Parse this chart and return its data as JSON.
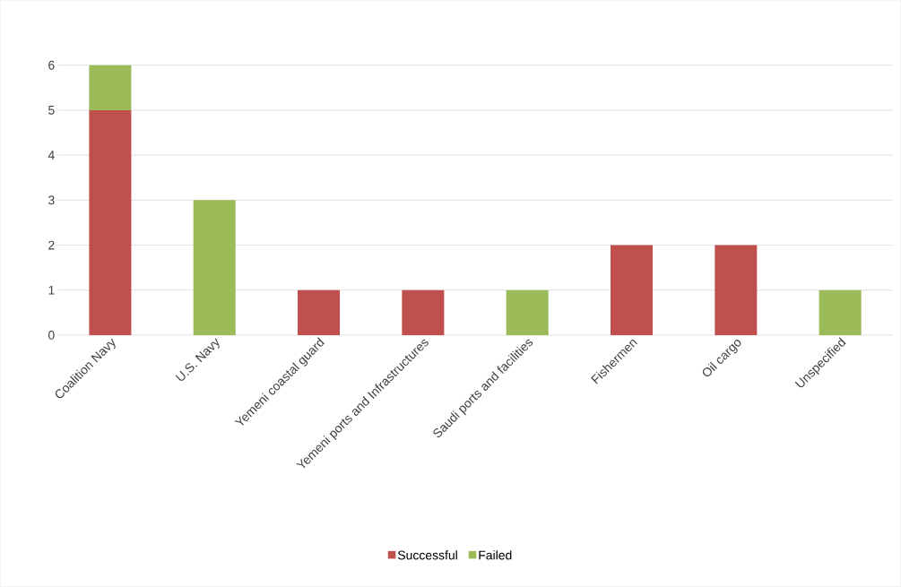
{
  "chart_data": {
    "type": "bar",
    "stacked": true,
    "categories": [
      "Coalition Navy",
      "U.S. Navy",
      "Yemeni coastal guard",
      "Yemeni ports and Infrastructures",
      "Saudi ports and facilities",
      "Fishermen",
      "Oil cargo",
      "Unspecified"
    ],
    "series": [
      {
        "name": "Successful",
        "color": "#c0504d",
        "values": [
          5,
          0,
          1,
          1,
          0,
          2,
          2,
          0
        ]
      },
      {
        "name": "Failed",
        "color": "#9bbb59",
        "values": [
          1,
          3,
          0,
          0,
          1,
          0,
          0,
          1
        ]
      }
    ],
    "ylim": [
      0,
      6
    ],
    "yticks": [
      0,
      1,
      2,
      3,
      4,
      5,
      6
    ],
    "grid": "y",
    "legend": "bottom"
  }
}
